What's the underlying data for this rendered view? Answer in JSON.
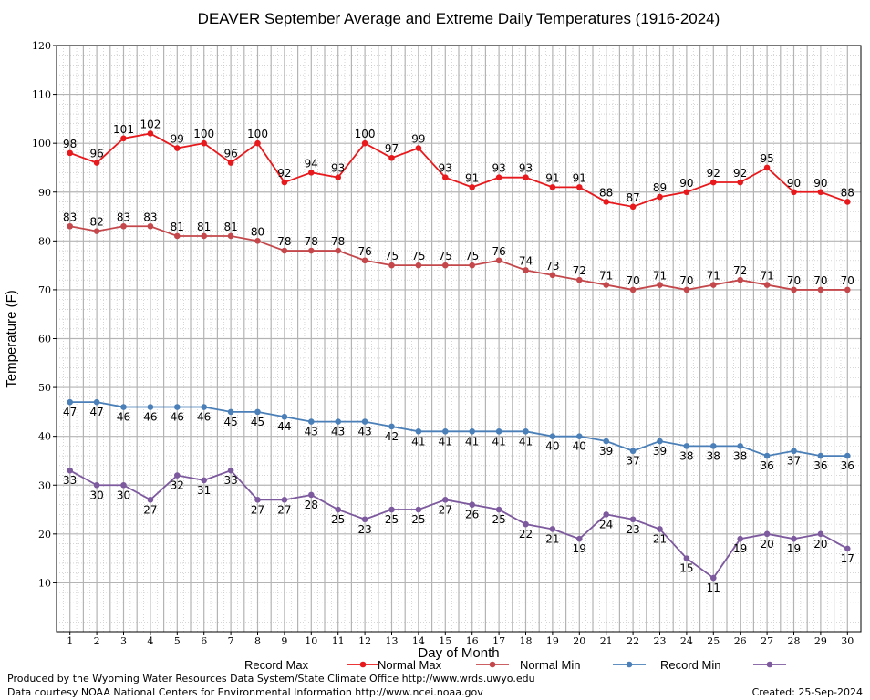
{
  "chart_data": {
    "type": "line",
    "title": "DEAVER September Average and Extreme Daily Temperatures (1916-2024)",
    "xlabel": "Day of Month",
    "ylabel": "Temperature (F)",
    "xlim": [
      1,
      30
    ],
    "ylim": [
      0,
      120
    ],
    "y_ticks": [
      10,
      20,
      30,
      40,
      50,
      60,
      70,
      80,
      90,
      100,
      110,
      120
    ],
    "x": [
      1,
      2,
      3,
      4,
      5,
      6,
      7,
      8,
      9,
      10,
      11,
      12,
      13,
      14,
      15,
      16,
      17,
      18,
      19,
      20,
      21,
      22,
      23,
      24,
      25,
      26,
      27,
      28,
      29,
      30
    ],
    "grid": true,
    "legend_position": "bottom",
    "series": [
      {
        "name": "Record Max",
        "color": "#e8191c",
        "label_position": "above",
        "values": [
          98,
          96,
          101,
          102,
          99,
          100,
          96,
          100,
          92,
          94,
          93,
          100,
          97,
          99,
          93,
          91,
          93,
          93,
          91,
          91,
          88,
          87,
          89,
          90,
          92,
          92,
          95,
          90,
          90,
          88
        ]
      },
      {
        "name": "Normal Max",
        "color": "#c4484b",
        "label_position": "above",
        "values": [
          83,
          82,
          83,
          83,
          81,
          81,
          81,
          80,
          78,
          78,
          78,
          76,
          75,
          75,
          75,
          75,
          76,
          74,
          73,
          72,
          71,
          70,
          71,
          70,
          71,
          72,
          71,
          70,
          70,
          70
        ]
      },
      {
        "name": "Normal Min",
        "color": "#4a7fb8",
        "label_position": "below",
        "values": [
          47,
          47,
          46,
          46,
          46,
          46,
          45,
          45,
          44,
          43,
          43,
          43,
          42,
          41,
          41,
          41,
          41,
          41,
          40,
          40,
          39,
          37,
          39,
          38,
          38,
          38,
          36,
          37,
          36,
          36
        ]
      },
      {
        "name": "Record Min",
        "color": "#7d5a9e",
        "label_position": "below",
        "values": [
          33,
          30,
          30,
          27,
          32,
          31,
          33,
          27,
          27,
          28,
          25,
          23,
          25,
          25,
          27,
          26,
          25,
          22,
          21,
          19,
          24,
          23,
          21,
          15,
          11,
          19,
          20,
          19,
          20,
          17
        ]
      }
    ]
  },
  "footer": {
    "produced_by": "Produced by the Wyoming Water Resources Data System/State Climate Office http://www.wrds.uwyo.edu",
    "courtesy": "Data courtesy NOAA National Centers for Environmental Information http://www.ncei.noaa.gov",
    "created": "Created:  25-Sep-2024"
  }
}
